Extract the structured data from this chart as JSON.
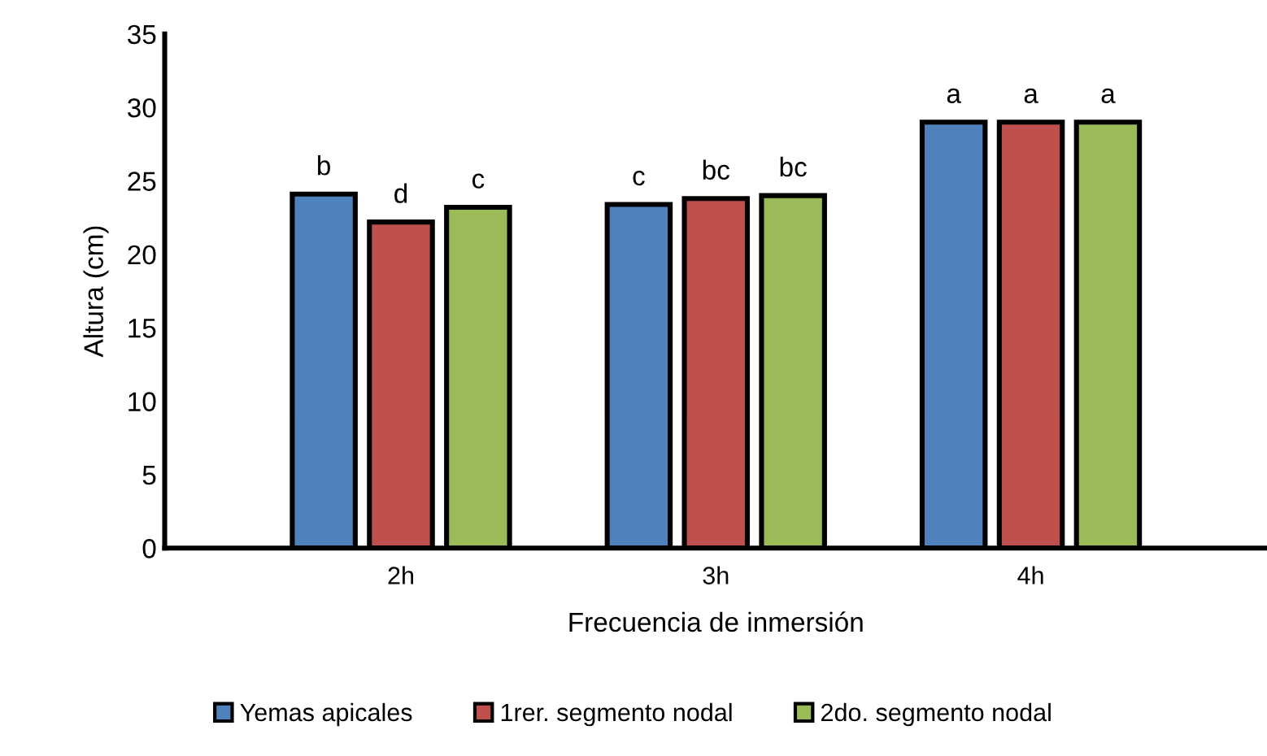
{
  "chart_data": {
    "type": "bar",
    "xlabel": "Frecuencia de inmersión",
    "ylabel": "Altura (cm)",
    "categories": [
      "2h",
      "3h",
      "4h"
    ],
    "series": [
      {
        "name": "Yemas apicales",
        "color": "#4f81bd",
        "values": [
          24.1,
          23.4,
          29.0
        ],
        "value_labels": [
          "b",
          "c",
          "a"
        ]
      },
      {
        "name": "1rer. segmento nodal",
        "color": "#c0504d",
        "values": [
          22.2,
          23.8,
          29.0
        ],
        "value_labels": [
          "d",
          "bc",
          "a"
        ]
      },
      {
        "name": "2do. segmento nodal",
        "color": "#9bbb59",
        "values": [
          23.2,
          24.0,
          29.0
        ],
        "value_labels": [
          "c",
          "bc",
          "a"
        ]
      }
    ],
    "ylim": [
      0,
      35
    ],
    "yticks": [
      0,
      5,
      10,
      15,
      20,
      25,
      30,
      35
    ],
    "grid": false,
    "legend": "bottom"
  }
}
